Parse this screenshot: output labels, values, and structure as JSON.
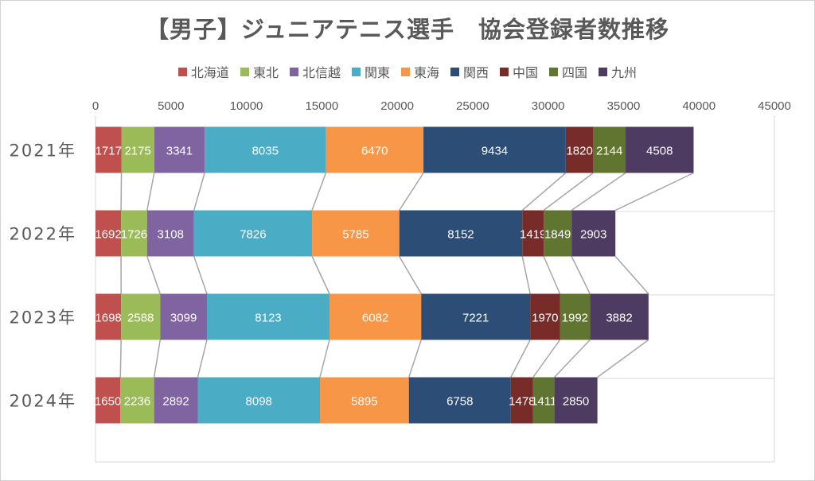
{
  "chart_data": {
    "type": "bar",
    "orientation": "horizontal",
    "stacked": true,
    "title": "【男子】ジュニアテニス選手　協会登録者数推移",
    "categories": [
      "2021年",
      "2022年",
      "2023年",
      "2024年"
    ],
    "xlim": [
      0,
      45000
    ],
    "xticks": [
      0,
      5000,
      10000,
      15000,
      20000,
      25000,
      30000,
      35000,
      40000,
      45000
    ],
    "legend_position": "top",
    "series_lines": true,
    "series": [
      {
        "name": "北海道",
        "color": "#c0504d",
        "values": [
          1717,
          1692,
          1698,
          1650
        ]
      },
      {
        "name": "東北",
        "color": "#9bbb59",
        "values": [
          2175,
          1726,
          2588,
          2236
        ]
      },
      {
        "name": "北信越",
        "color": "#8064a2",
        "values": [
          3341,
          3108,
          3099,
          2892
        ]
      },
      {
        "name": "関東",
        "color": "#4bacc6",
        "values": [
          8035,
          7826,
          8123,
          8098
        ]
      },
      {
        "name": "東海",
        "color": "#f79646",
        "values": [
          6470,
          5785,
          6082,
          5895
        ]
      },
      {
        "name": "関西",
        "color": "#2c4d75",
        "values": [
          9434,
          8152,
          7221,
          6758
        ]
      },
      {
        "name": "中国",
        "color": "#772c2a",
        "values": [
          1820,
          1419,
          1970,
          1478
        ]
      },
      {
        "name": "四国",
        "color": "#5f7530",
        "values": [
          2144,
          1849,
          1992,
          1411
        ]
      },
      {
        "name": "九州",
        "color": "#4d3b62",
        "values": [
          4508,
          2903,
          3882,
          2850
        ]
      }
    ]
  }
}
